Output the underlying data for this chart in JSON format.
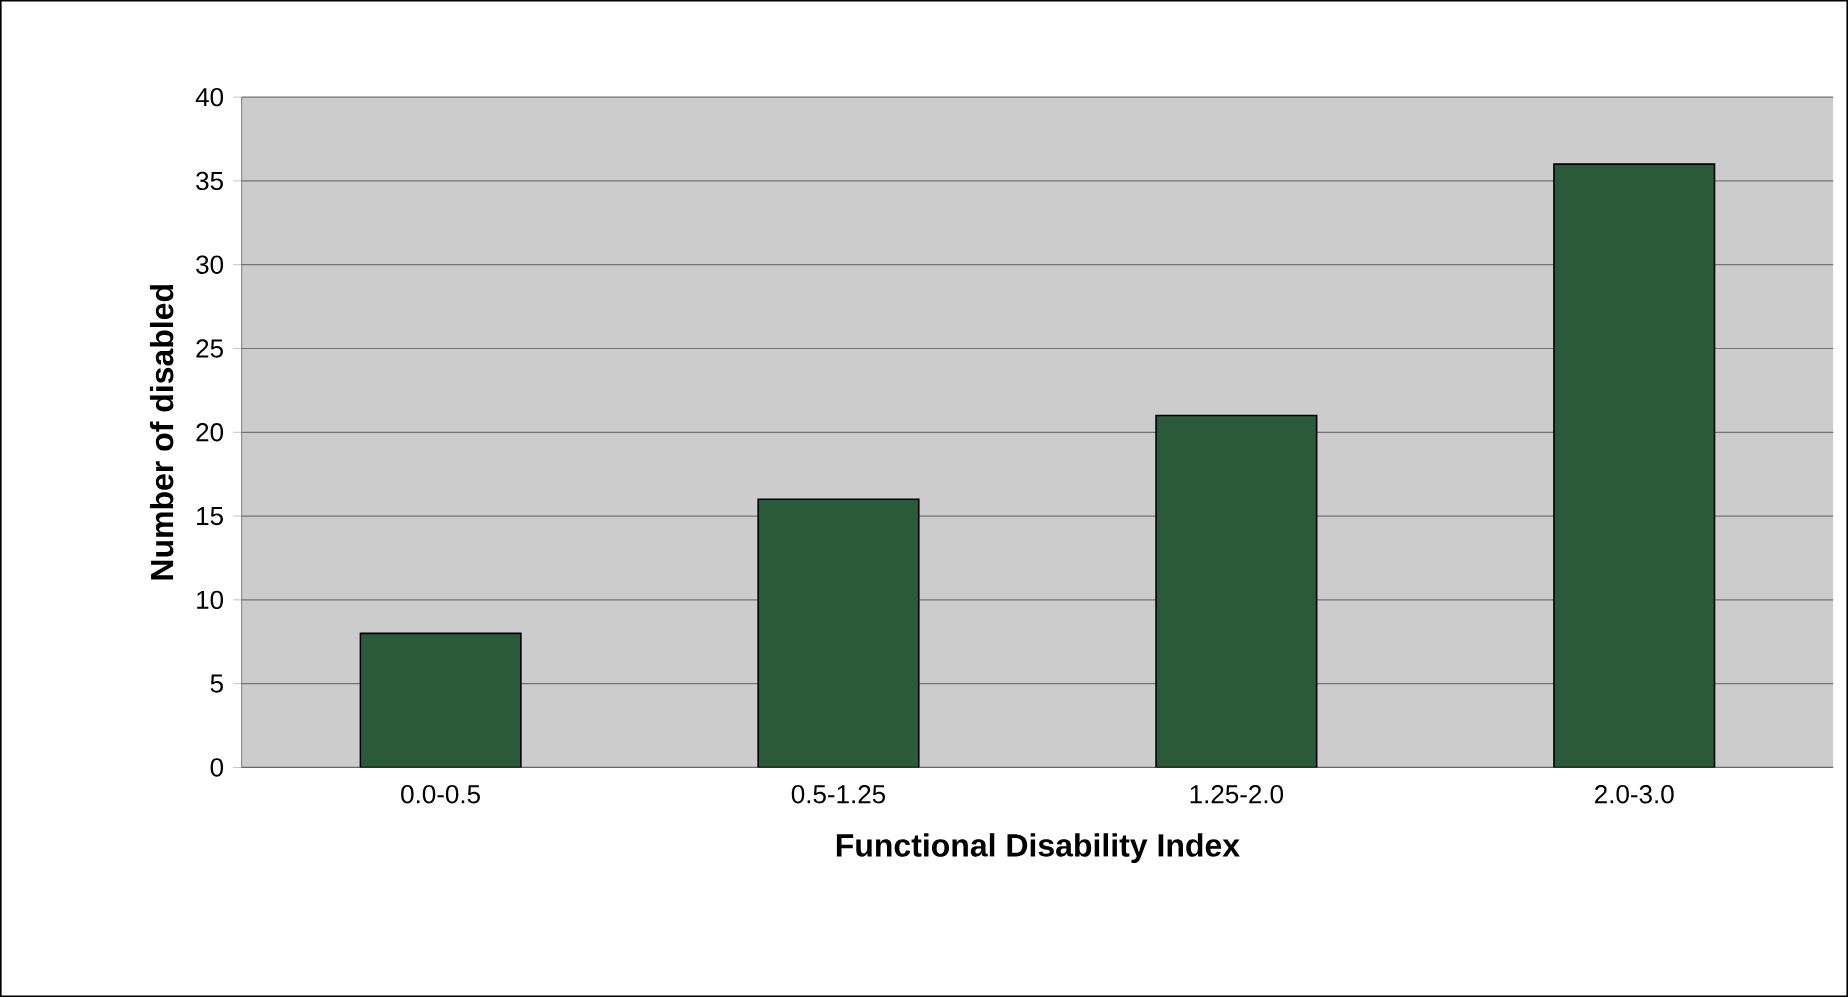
{
  "chart_data": {
    "type": "bar",
    "xlabel": "Functional Disability Index",
    "ylabel": "Number of disabled",
    "categories": [
      "0.0-0.5",
      "0.5-1.25",
      "1.25-2.0",
      "2.0-3.0"
    ],
    "values": [
      8,
      16,
      21,
      36
    ],
    "color": "#2b5a3a",
    "ylim": [
      0,
      40
    ],
    "yticks": [
      0,
      5,
      10,
      15,
      20,
      25,
      30,
      35,
      40
    ],
    "grid": "y"
  }
}
